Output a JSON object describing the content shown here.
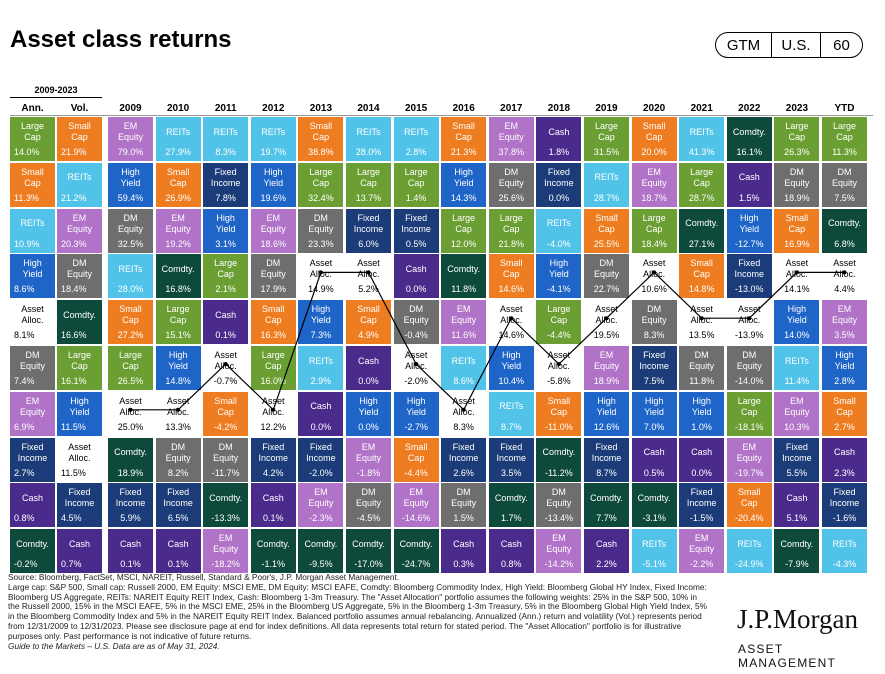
{
  "header": {
    "title": "Asset class returns",
    "badge": [
      "GTM",
      "U.S.",
      "60"
    ]
  },
  "colors": {
    "Large Cap": "#6B9F33",
    "Small Cap": "#EE7D21",
    "EM Equity": "#B073C7",
    "DM Equity": "#6E6E6E",
    "REITs": "#52C3E8",
    "High Yield": "#1F65C8",
    "Fixed Income": "#1B3C78",
    "Cash": "#4A2B8C",
    "Comdty.": "#0E4A3C",
    "Asset Alloc.": "#FFFFFF"
  },
  "chart_data": {
    "type": "table",
    "title": "Asset class returns",
    "range_label": "2009-2023",
    "stat_headers": [
      "Ann.",
      "Vol."
    ],
    "years": [
      "2009",
      "2010",
      "2011",
      "2012",
      "2013",
      "2014",
      "2015",
      "2016",
      "2017",
      "2018",
      "2019",
      "2020",
      "2021",
      "2022",
      "2023",
      "YTD"
    ],
    "stat_columns": [
      [
        {
          "name": "Large Cap",
          "value": "14.0%"
        },
        {
          "name": "Small Cap",
          "value": "11.3%"
        },
        {
          "name": "REITs",
          "value": "10.9%"
        },
        {
          "name": "High Yield",
          "value": "8.6%"
        },
        {
          "name": "Asset Alloc.",
          "value": "8.1%"
        },
        {
          "name": "DM Equity",
          "value": "7.4%"
        },
        {
          "name": "EM Equity",
          "value": "6.9%"
        },
        {
          "name": "Fixed Income",
          "value": "2.7%"
        },
        {
          "name": "Cash",
          "value": "0.8%"
        },
        {
          "name": "Comdty.",
          "value": "-0.2%"
        }
      ],
      [
        {
          "name": "Small Cap",
          "value": "21.9%"
        },
        {
          "name": "REITs",
          "value": "21.2%"
        },
        {
          "name": "EM Equity",
          "value": "20.3%"
        },
        {
          "name": "DM Equity",
          "value": "18.4%"
        },
        {
          "name": "Comdty.",
          "value": "16.6%"
        },
        {
          "name": "Large Cap",
          "value": "16.1%"
        },
        {
          "name": "High Yield",
          "value": "11.5%"
        },
        {
          "name": "Asset Alloc.",
          "value": "11.5%"
        },
        {
          "name": "Fixed Income",
          "value": "4.5%"
        },
        {
          "name": "Cash",
          "value": "0.7%"
        }
      ]
    ],
    "columns": [
      [
        {
          "name": "EM Equity",
          "value": "79.0%"
        },
        {
          "name": "High Yield",
          "value": "59.4%"
        },
        {
          "name": "DM Equity",
          "value": "32.5%"
        },
        {
          "name": "REITs",
          "value": "28.0%"
        },
        {
          "name": "Small Cap",
          "value": "27.2%"
        },
        {
          "name": "Large Cap",
          "value": "26.5%"
        },
        {
          "name": "Asset Alloc.",
          "value": "25.0%"
        },
        {
          "name": "Comdty.",
          "value": "18.9%"
        },
        {
          "name": "Fixed Income",
          "value": "5.9%"
        },
        {
          "name": "Cash",
          "value": "0.1%"
        }
      ],
      [
        {
          "name": "REITs",
          "value": "27.9%"
        },
        {
          "name": "Small Cap",
          "value": "26.9%"
        },
        {
          "name": "EM Equity",
          "value": "19.2%"
        },
        {
          "name": "Comdty.",
          "value": "16.8%"
        },
        {
          "name": "Large Cap",
          "value": "15.1%"
        },
        {
          "name": "High Yield",
          "value": "14.8%"
        },
        {
          "name": "Asset Alloc.",
          "value": "13.3%"
        },
        {
          "name": "DM Equity",
          "value": "8.2%"
        },
        {
          "name": "Fixed Income",
          "value": "6.5%"
        },
        {
          "name": "Cash",
          "value": "0.1%"
        }
      ],
      [
        {
          "name": "REITs",
          "value": "8.3%"
        },
        {
          "name": "Fixed Income",
          "value": "7.8%"
        },
        {
          "name": "High Yield",
          "value": "3.1%"
        },
        {
          "name": "Large Cap",
          "value": "2.1%"
        },
        {
          "name": "Cash",
          "value": "0.1%"
        },
        {
          "name": "Asset Alloc.",
          "value": "-0.7%"
        },
        {
          "name": "Small Cap",
          "value": "-4.2%"
        },
        {
          "name": "DM Equity",
          "value": "-11.7%"
        },
        {
          "name": "Comdty.",
          "value": "-13.3%"
        },
        {
          "name": "EM Equity",
          "value": "-18.2%"
        }
      ],
      [
        {
          "name": "REITs",
          "value": "19.7%"
        },
        {
          "name": "High Yield",
          "value": "19.6%"
        },
        {
          "name": "EM Equity",
          "value": "18.6%"
        },
        {
          "name": "DM Equity",
          "value": "17.9%"
        },
        {
          "name": "Small Cap",
          "value": "16.3%"
        },
        {
          "name": "Large Cap",
          "value": "16.0%"
        },
        {
          "name": "Asset Alloc.",
          "value": "12.2%"
        },
        {
          "name": "Fixed Income",
          "value": "4.2%"
        },
        {
          "name": "Cash",
          "value": "0.1%"
        },
        {
          "name": "Comdty.",
          "value": "-1.1%"
        }
      ],
      [
        {
          "name": "Small Cap",
          "value": "38.8%"
        },
        {
          "name": "Large Cap",
          "value": "32.4%"
        },
        {
          "name": "DM Equity",
          "value": "23.3%"
        },
        {
          "name": "Asset Alloc.",
          "value": "14.9%"
        },
        {
          "name": "High Yield",
          "value": "7.3%"
        },
        {
          "name": "REITs",
          "value": "2.9%"
        },
        {
          "name": "Cash",
          "value": "0.0%"
        },
        {
          "name": "Fixed Income",
          "value": "-2.0%"
        },
        {
          "name": "EM Equity",
          "value": "-2.3%"
        },
        {
          "name": "Comdty.",
          "value": "-9.5%"
        }
      ],
      [
        {
          "name": "REITs",
          "value": "28.0%"
        },
        {
          "name": "Large Cap",
          "value": "13.7%"
        },
        {
          "name": "Fixed Income",
          "value": "6.0%"
        },
        {
          "name": "Asset Alloc.",
          "value": "5.2%"
        },
        {
          "name": "Small Cap",
          "value": "4.9%"
        },
        {
          "name": "Cash",
          "value": "0.0%"
        },
        {
          "name": "High Yield",
          "value": "0.0%"
        },
        {
          "name": "EM Equity",
          "value": "-1.8%"
        },
        {
          "name": "DM Equity",
          "value": "-4.5%"
        },
        {
          "name": "Comdty.",
          "value": "-17.0%"
        }
      ],
      [
        {
          "name": "REITs",
          "value": "2.8%"
        },
        {
          "name": "Large Cap",
          "value": "1.4%"
        },
        {
          "name": "Fixed Income",
          "value": "0.5%"
        },
        {
          "name": "Cash",
          "value": "0.0%"
        },
        {
          "name": "DM Equity",
          "value": "-0.4%"
        },
        {
          "name": "Asset Alloc.",
          "value": "-2.0%"
        },
        {
          "name": "High Yield",
          "value": "-2.7%"
        },
        {
          "name": "Small Cap",
          "value": "-4.4%"
        },
        {
          "name": "EM Equity",
          "value": "-14.6%"
        },
        {
          "name": "Comdty.",
          "value": "-24.7%"
        }
      ],
      [
        {
          "name": "Small Cap",
          "value": "21.3%"
        },
        {
          "name": "High Yield",
          "value": "14.3%"
        },
        {
          "name": "Large Cap",
          "value": "12.0%"
        },
        {
          "name": "Comdty.",
          "value": "11.8%"
        },
        {
          "name": "EM Equity",
          "value": "11.6%"
        },
        {
          "name": "REITs",
          "value": "8.6%"
        },
        {
          "name": "Asset Alloc.",
          "value": "8.3%"
        },
        {
          "name": "Fixed Income",
          "value": "2.6%"
        },
        {
          "name": "DM Equity",
          "value": "1.5%"
        },
        {
          "name": "Cash",
          "value": "0.3%"
        }
      ],
      [
        {
          "name": "EM Equity",
          "value": "37.8%"
        },
        {
          "name": "DM Equity",
          "value": "25.6%"
        },
        {
          "name": "Large Cap",
          "value": "21.8%"
        },
        {
          "name": "Small Cap",
          "value": "14.6%"
        },
        {
          "name": "Asset Alloc.",
          "value": "14.6%"
        },
        {
          "name": "High Yield",
          "value": "10.4%"
        },
        {
          "name": "REITs",
          "value": "8.7%"
        },
        {
          "name": "Fixed Income",
          "value": "3.5%"
        },
        {
          "name": "Comdty.",
          "value": "1.7%"
        },
        {
          "name": "Cash",
          "value": "0.8%"
        }
      ],
      [
        {
          "name": "Cash",
          "value": "1.8%"
        },
        {
          "name": "Fixed Income",
          "value": "0.0%"
        },
        {
          "name": "REITs",
          "value": "-4.0%"
        },
        {
          "name": "High Yield",
          "value": "-4.1%"
        },
        {
          "name": "Large Cap",
          "value": "-4.4%"
        },
        {
          "name": "Asset Alloc.",
          "value": "-5.8%"
        },
        {
          "name": "Small Cap",
          "value": "-11.0%"
        },
        {
          "name": "Comdty.",
          "value": "-11.2%"
        },
        {
          "name": "DM Equity",
          "value": "-13.4%"
        },
        {
          "name": "EM Equity",
          "value": "-14.2%"
        }
      ],
      [
        {
          "name": "Large Cap",
          "value": "31.5%"
        },
        {
          "name": "REITs",
          "value": "28.7%"
        },
        {
          "name": "Small Cap",
          "value": "25.5%"
        },
        {
          "name": "DM Equity",
          "value": "22.7%"
        },
        {
          "name": "Asset Alloc.",
          "value": "19.5%"
        },
        {
          "name": "EM Equity",
          "value": "18.9%"
        },
        {
          "name": "High Yield",
          "value": "12.6%"
        },
        {
          "name": "Fixed Income",
          "value": "8.7%"
        },
        {
          "name": "Comdty.",
          "value": "7.7%"
        },
        {
          "name": "Cash",
          "value": "2.2%"
        }
      ],
      [
        {
          "name": "Small Cap",
          "value": "20.0%"
        },
        {
          "name": "EM Equity",
          "value": "18.7%"
        },
        {
          "name": "Large Cap",
          "value": "18.4%"
        },
        {
          "name": "Asset Alloc.",
          "value": "10.6%"
        },
        {
          "name": "DM Equity",
          "value": "8.3%"
        },
        {
          "name": "Fixed Income",
          "value": "7.5%"
        },
        {
          "name": "High Yield",
          "value": "7.0%"
        },
        {
          "name": "Cash",
          "value": "0.5%"
        },
        {
          "name": "Comdty.",
          "value": "-3.1%"
        },
        {
          "name": "REITs",
          "value": "-5.1%"
        }
      ],
      [
        {
          "name": "REITs",
          "value": "41.3%"
        },
        {
          "name": "Large Cap",
          "value": "28.7%"
        },
        {
          "name": "Comdty.",
          "value": "27.1%"
        },
        {
          "name": "Small Cap",
          "value": "14.8%"
        },
        {
          "name": "Asset Alloc.",
          "value": "13.5%"
        },
        {
          "name": "DM Equity",
          "value": "11.8%"
        },
        {
          "name": "High Yield",
          "value": "1.0%"
        },
        {
          "name": "Cash",
          "value": "0.0%"
        },
        {
          "name": "Fixed Income",
          "value": "-1.5%"
        },
        {
          "name": "EM Equity",
          "value": "-2.2%"
        }
      ],
      [
        {
          "name": "Comdty.",
          "value": "16.1%"
        },
        {
          "name": "Cash",
          "value": "1.5%"
        },
        {
          "name": "High Yield",
          "value": "-12.7%"
        },
        {
          "name": "Fixed Income",
          "value": "-13.0%"
        },
        {
          "name": "Asset Alloc.",
          "value": "-13.9%"
        },
        {
          "name": "DM Equity",
          "value": "-14.0%"
        },
        {
          "name": "Large Cap",
          "value": "-18.1%"
        },
        {
          "name": "EM Equity",
          "value": "-19.7%"
        },
        {
          "name": "Small Cap",
          "value": "-20.4%"
        },
        {
          "name": "REITs",
          "value": "-24.9%"
        }
      ],
      [
        {
          "name": "Large Cap",
          "value": "26.3%"
        },
        {
          "name": "DM Equity",
          "value": "18.9%"
        },
        {
          "name": "Small Cap",
          "value": "16.9%"
        },
        {
          "name": "Asset Alloc.",
          "value": "14.1%"
        },
        {
          "name": "High Yield",
          "value": "14.0%"
        },
        {
          "name": "REITs",
          "value": "11.4%"
        },
        {
          "name": "EM Equity",
          "value": "10.3%"
        },
        {
          "name": "Fixed Income",
          "value": "5.5%"
        },
        {
          "name": "Cash",
          "value": "5.1%"
        },
        {
          "name": "Comdty.",
          "value": "-7.9%"
        }
      ],
      [
        {
          "name": "Large Cap",
          "value": "11.3%"
        },
        {
          "name": "DM Equity",
          "value": "7.5%"
        },
        {
          "name": "Comdty.",
          "value": "6.8%"
        },
        {
          "name": "Asset Alloc.",
          "value": "4.4%"
        },
        {
          "name": "EM Equity",
          "value": "3.5%"
        },
        {
          "name": "High Yield",
          "value": "2.8%"
        },
        {
          "name": "Small Cap",
          "value": "2.7%"
        },
        {
          "name": "Cash",
          "value": "2.3%"
        },
        {
          "name": "Fixed Income",
          "value": "-1.6%"
        },
        {
          "name": "REITs",
          "value": "-4.3%"
        }
      ]
    ]
  },
  "footnote": {
    "lines": [
      "Source: Bloomberg, FactSet, MSCI, NAREIT, Russell, Standard & Poor's, J.P. Morgan Asset Management.",
      "Large cap: S&P 500, Small cap: Russell 2000, EM Equity: MSCI EME, DM Equity: MSCI EAFE, Comdty: Bloomberg Commodity Index, High Yield: Bloomberg Global HY Index, Fixed Income: Bloomberg US Aggregate, REITs: NAREIT Equity REIT Index, Cash: Bloomberg 1-3m Treasury. The \"Asset Allocation\" portfolio assumes the following weights: 25% in the S&P 500, 10% in the Russell 2000, 15% in the MSCI EAFE, 5% in the MSCI EME, 25% in the Bloomberg US Aggregate, 5% in the Bloomberg 1-3m Treasury, 5% in the Bloomberg Global High Yield Index, 5% in the Bloomberg Commodity Index and 5% in the NAREIT Equity REIT Index. Balanced portfolio assumes annual rebalancing. Annualized (Ann.) return and volatility (Vol.) represents period from 12/31/2009 to 12/31/2023. Please see disclosure page at end for index definitions. All data represents total return for stated period. The \"Asset Allocation\" portfolio is for illustrative purposes only. Past performance is not indicative of future returns."
    ],
    "gtm": "Guide to the Markets – U.S. Data are as of May 31, 2024."
  },
  "brand": {
    "logo": "J.P.Morgan",
    "sub": "ASSET MANAGEMENT"
  }
}
